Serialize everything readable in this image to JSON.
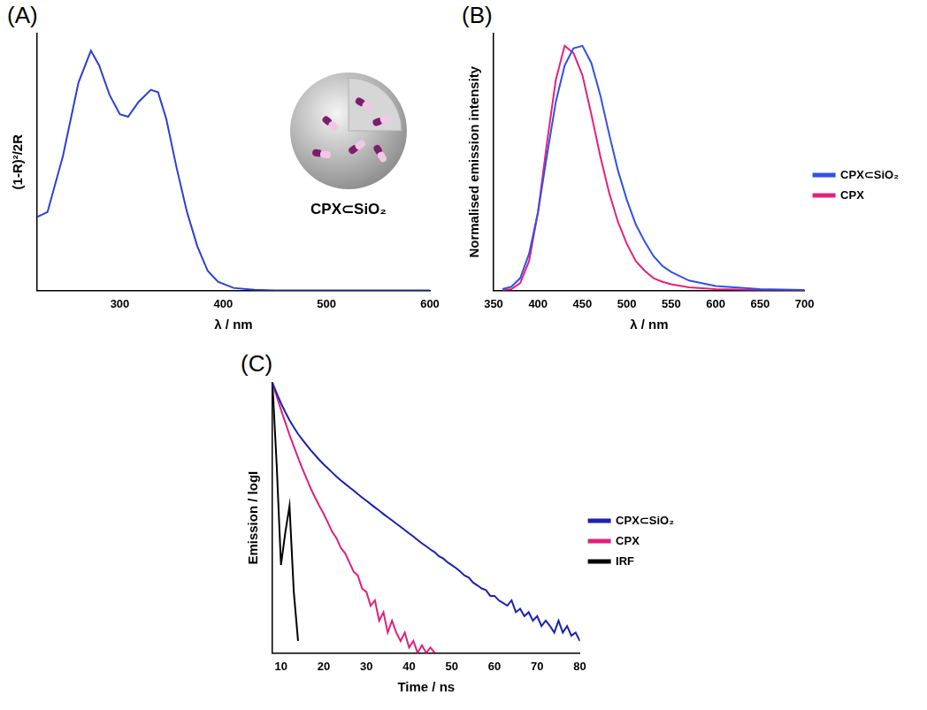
{
  "chart_data": [
    {
      "panel": "(A)",
      "type": "line",
      "x_label": "λ / nm",
      "y_label": "(1-R)²/2R",
      "annotation": "CPX⊂SiO₂",
      "x": [
        220,
        230,
        245,
        260,
        272,
        280,
        290,
        300,
        308,
        318,
        330,
        337,
        345,
        355,
        365,
        375,
        385,
        395,
        410,
        430,
        450,
        600
      ],
      "values": [
        0.3,
        0.32,
        0.55,
        0.85,
        0.98,
        0.92,
        0.8,
        0.72,
        0.71,
        0.77,
        0.82,
        0.81,
        0.7,
        0.5,
        0.32,
        0.18,
        0.08,
        0.035,
        0.01,
        0.002,
        0,
        0
      ],
      "color": "#2a3fd6",
      "xlim": [
        220,
        600
      ],
      "xticks": [
        300,
        400,
        500,
        600
      ],
      "ylim": [
        0,
        1.05
      ],
      "yticks": [],
      "grid": false,
      "tick_labels": "x"
    },
    {
      "panel": "(B)",
      "type": "line",
      "x_label": "λ / nm",
      "y_label": "Normalised emission intensity",
      "x": [
        360,
        370,
        380,
        390,
        400,
        410,
        420,
        430,
        440,
        450,
        460,
        470,
        480,
        490,
        500,
        510,
        520,
        530,
        540,
        550,
        570,
        600,
        650,
        700
      ],
      "series": [
        {
          "name": "CPX⊂SiO₂",
          "color": "#3050e8",
          "values": [
            0.005,
            0.015,
            0.05,
            0.15,
            0.32,
            0.55,
            0.77,
            0.92,
            0.99,
            1.0,
            0.93,
            0.8,
            0.64,
            0.49,
            0.37,
            0.27,
            0.2,
            0.14,
            0.1,
            0.075,
            0.04,
            0.018,
            0.005,
            0.001
          ]
        },
        {
          "name": "CPX",
          "color": "#e8207a",
          "values": [
            0,
            0.005,
            0.03,
            0.12,
            0.32,
            0.6,
            0.86,
            1.0,
            0.97,
            0.88,
            0.72,
            0.55,
            0.4,
            0.28,
            0.19,
            0.12,
            0.08,
            0.05,
            0.035,
            0.025,
            0.012,
            0.005,
            0.001,
            0
          ]
        }
      ],
      "xlim": [
        350,
        700
      ],
      "xticks": [
        350,
        400,
        450,
        500,
        550,
        600,
        650,
        700
      ],
      "ylim": [
        0,
        1.05
      ],
      "yticks": [],
      "grid": false,
      "tick_labels": "x",
      "legend": "right"
    },
    {
      "panel": "(C)",
      "type": "line",
      "x_label": "Time / ns",
      "y_label": "Emission / logI",
      "x": [
        8,
        9,
        10,
        11,
        12,
        13,
        14,
        15,
        16,
        17,
        18,
        19,
        20,
        21,
        22,
        23,
        24,
        25,
        26,
        27,
        28,
        29,
        30,
        31,
        32,
        33,
        34,
        35,
        36,
        37,
        38,
        39,
        40,
        41,
        42,
        43,
        44,
        45,
        46,
        47,
        48,
        49,
        50,
        51,
        52,
        53,
        54,
        55,
        56,
        57,
        58,
        59,
        60,
        61,
        62,
        63,
        64,
        65,
        66,
        67,
        68,
        69,
        70,
        71,
        72,
        73,
        74,
        75,
        76,
        77,
        78,
        79,
        80
      ],
      "series": [
        {
          "name": "CPX⊂SiO₂",
          "color": "#1a22b0",
          "values": [
            10000,
            7000,
            5000,
            3700,
            2800,
            2200,
            1750,
            1450,
            1200,
            1000,
            850,
            720,
            620,
            540,
            470,
            410,
            360,
            320,
            285,
            255,
            225,
            200,
            180,
            160,
            143,
            128,
            114,
            102,
            92,
            82,
            74,
            66,
            59,
            53,
            47,
            42,
            38,
            34,
            31,
            27,
            25,
            22,
            20,
            18,
            16,
            14,
            13,
            11,
            10,
            9,
            8.5,
            7,
            7,
            6,
            5.5,
            5,
            6,
            4,
            4.5,
            3.5,
            4,
            3,
            3.5,
            2.5,
            3,
            2.5,
            2,
            3,
            2,
            2.5,
            1.8,
            2,
            1.5
          ]
        },
        {
          "name": "CPX",
          "color": "#e0207a",
          "values": [
            10000,
            6300,
            4000,
            2600,
            1700,
            1150,
            780,
            540,
            380,
            270,
            200,
            150,
            115,
            85,
            62,
            50,
            36,
            30,
            22,
            16,
            14,
            9,
            8,
            5,
            6,
            3,
            4,
            2,
            3,
            2,
            1.5,
            2,
            1.2,
            1.5,
            1,
            1.3,
            1,
            1.2,
            1,
            null,
            null,
            null,
            null,
            null,
            null,
            null,
            null,
            null,
            null,
            null,
            null,
            null,
            null,
            null,
            null,
            null,
            null,
            null,
            null,
            null,
            null,
            null,
            null,
            null,
            null,
            null,
            null,
            null,
            null,
            null,
            null,
            null,
            null
          ]
        },
        {
          "name": "IRF",
          "color": "#000000",
          "values": [
            10000,
            600,
            20,
            60,
            150,
            8,
            1.5,
            null,
            null,
            null,
            null,
            null,
            null,
            null,
            null,
            null,
            null,
            null,
            null,
            null,
            null,
            null,
            null,
            null,
            null,
            null,
            null,
            null,
            null,
            null,
            null,
            null,
            null,
            null,
            null,
            null,
            null,
            null,
            null,
            null,
            null,
            null,
            null,
            null,
            null,
            null,
            null,
            null,
            null,
            null,
            null,
            null,
            null,
            null,
            null,
            null,
            null,
            null,
            null,
            null,
            null,
            null,
            null,
            null,
            null,
            null,
            null,
            null,
            null,
            null,
            null,
            null,
            null
          ]
        }
      ],
      "xlim": [
        8,
        80
      ],
      "xticks": [
        10,
        20,
        30,
        40,
        50,
        60,
        70,
        80
      ],
      "ylim": [
        1,
        10000
      ],
      "yticks": [],
      "log": "y",
      "grid": false,
      "tick_labels": "x",
      "legend": "right"
    }
  ]
}
